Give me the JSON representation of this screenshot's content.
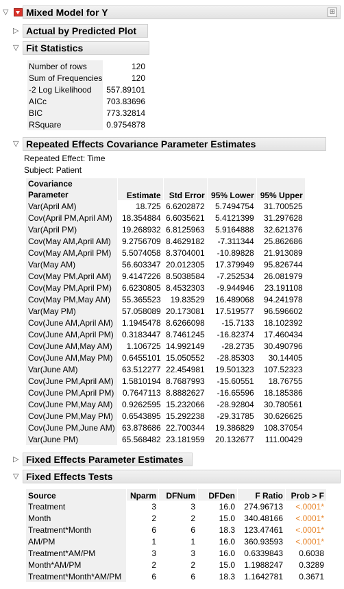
{
  "report": {
    "title": "Mixed Model for Y",
    "sections": {
      "actual_by_predicted": "Actual by Predicted Plot",
      "fit_statistics": "Fit Statistics",
      "repeated_effects": "Repeated Effects Covariance Parameter Estimates",
      "fixed_params": "Fixed Effects Parameter Estimates",
      "fixed_tests": "Fixed Effects Tests"
    }
  },
  "fit_statistics": [
    {
      "label": "Number of rows",
      "value": "120"
    },
    {
      "label": "Sum of Frequencies",
      "value": "120"
    },
    {
      "label": "-2 Log Likelihood",
      "value": "557.89101"
    },
    {
      "label": "AICc",
      "value": "703.83696"
    },
    {
      "label": "BIC",
      "value": "773.32814"
    },
    {
      "label": "RSquare",
      "value": "0.9754878"
    }
  ],
  "repeated": {
    "effect_line": "Repeated Effect: Time",
    "subject_line": "Subject: Patient",
    "headers": [
      "Covariance",
      "Parameter",
      "Estimate",
      "Std Error",
      "95% Lower",
      "95% Upper"
    ],
    "rows": [
      [
        "Var(April AM)",
        "18.725",
        "6.6202872",
        "5.7494754",
        "31.700525"
      ],
      [
        "Cov(April PM,April AM)",
        "18.354884",
        "6.6035621",
        "5.4121399",
        "31.297628"
      ],
      [
        "Var(April PM)",
        "19.268932",
        "6.8125963",
        "5.9164888",
        "32.621376"
      ],
      [
        "Cov(May AM,April AM)",
        "9.2756709",
        "8.4629182",
        "-7.311344",
        "25.862686"
      ],
      [
        "Cov(May AM,April PM)",
        "5.5074058",
        "8.3704001",
        "-10.89828",
        "21.913089"
      ],
      [
        "Var(May AM)",
        "56.603347",
        "20.012305",
        "17.379949",
        "95.826744"
      ],
      [
        "Cov(May PM,April AM)",
        "9.4147226",
        "8.5038584",
        "-7.252534",
        "26.081979"
      ],
      [
        "Cov(May PM,April PM)",
        "6.6230805",
        "8.4532303",
        "-9.944946",
        "23.191108"
      ],
      [
        "Cov(May PM,May AM)",
        "55.365523",
        "19.83529",
        "16.489068",
        "94.241978"
      ],
      [
        "Var(May PM)",
        "57.058089",
        "20.173081",
        "17.519577",
        "96.596602"
      ],
      [
        "Cov(June AM,April AM)",
        "1.1945478",
        "8.6266098",
        "-15.7133",
        "18.102392"
      ],
      [
        "Cov(June AM,April PM)",
        "0.3183447",
        "8.7461245",
        "-16.82374",
        "17.460434"
      ],
      [
        "Cov(June AM,May AM)",
        "1.106725",
        "14.992149",
        "-28.2735",
        "30.490796"
      ],
      [
        "Cov(June AM,May PM)",
        "0.6455101",
        "15.050552",
        "-28.85303",
        "30.14405"
      ],
      [
        "Var(June AM)",
        "63.512277",
        "22.454981",
        "19.501323",
        "107.52323"
      ],
      [
        "Cov(June PM,April AM)",
        "1.5810194",
        "8.7687993",
        "-15.60551",
        "18.76755"
      ],
      [
        "Cov(June PM,April PM)",
        "0.7647113",
        "8.8882627",
        "-16.65596",
        "18.185386"
      ],
      [
        "Cov(June PM,May AM)",
        "0.9262595",
        "15.232066",
        "-28.92804",
        "30.780561"
      ],
      [
        "Cov(June PM,May PM)",
        "0.6543895",
        "15.292238",
        "-29.31785",
        "30.626625"
      ],
      [
        "Cov(June PM,June AM)",
        "63.878686",
        "22.700344",
        "19.386829",
        "108.37054"
      ],
      [
        "Var(June PM)",
        "65.568482",
        "23.181959",
        "20.132677",
        "111.00429"
      ]
    ]
  },
  "fixed_tests": {
    "headers": [
      "Source",
      "Nparm",
      "DFNum",
      "DFDen",
      "F Ratio",
      "Prob > F"
    ],
    "rows": [
      [
        "Treatment",
        "3",
        "3",
        "16.0",
        "274.96713",
        "<.0001*"
      ],
      [
        "Month",
        "2",
        "2",
        "15.0",
        "340.48166",
        "<.0001*"
      ],
      [
        "Treatment*Month",
        "6",
        "6",
        "18.3",
        "123.47461",
        "<.0001*"
      ],
      [
        "AM/PM",
        "1",
        "1",
        "16.0",
        "360.93593",
        "<.0001*"
      ],
      [
        "Treatment*AM/PM",
        "3",
        "3",
        "16.0",
        "0.6339843",
        "0.6038"
      ],
      [
        "Month*AM/PM",
        "2",
        "2",
        "15.0",
        "1.1988247",
        "0.3289"
      ],
      [
        "Treatment*Month*AM/PM",
        "6",
        "6",
        "18.3",
        "1.1642781",
        "0.3671"
      ]
    ],
    "significant_color": "#e8852a"
  },
  "icons": {
    "expanded": "▽",
    "collapsed": "▷",
    "pin": "⊞"
  }
}
